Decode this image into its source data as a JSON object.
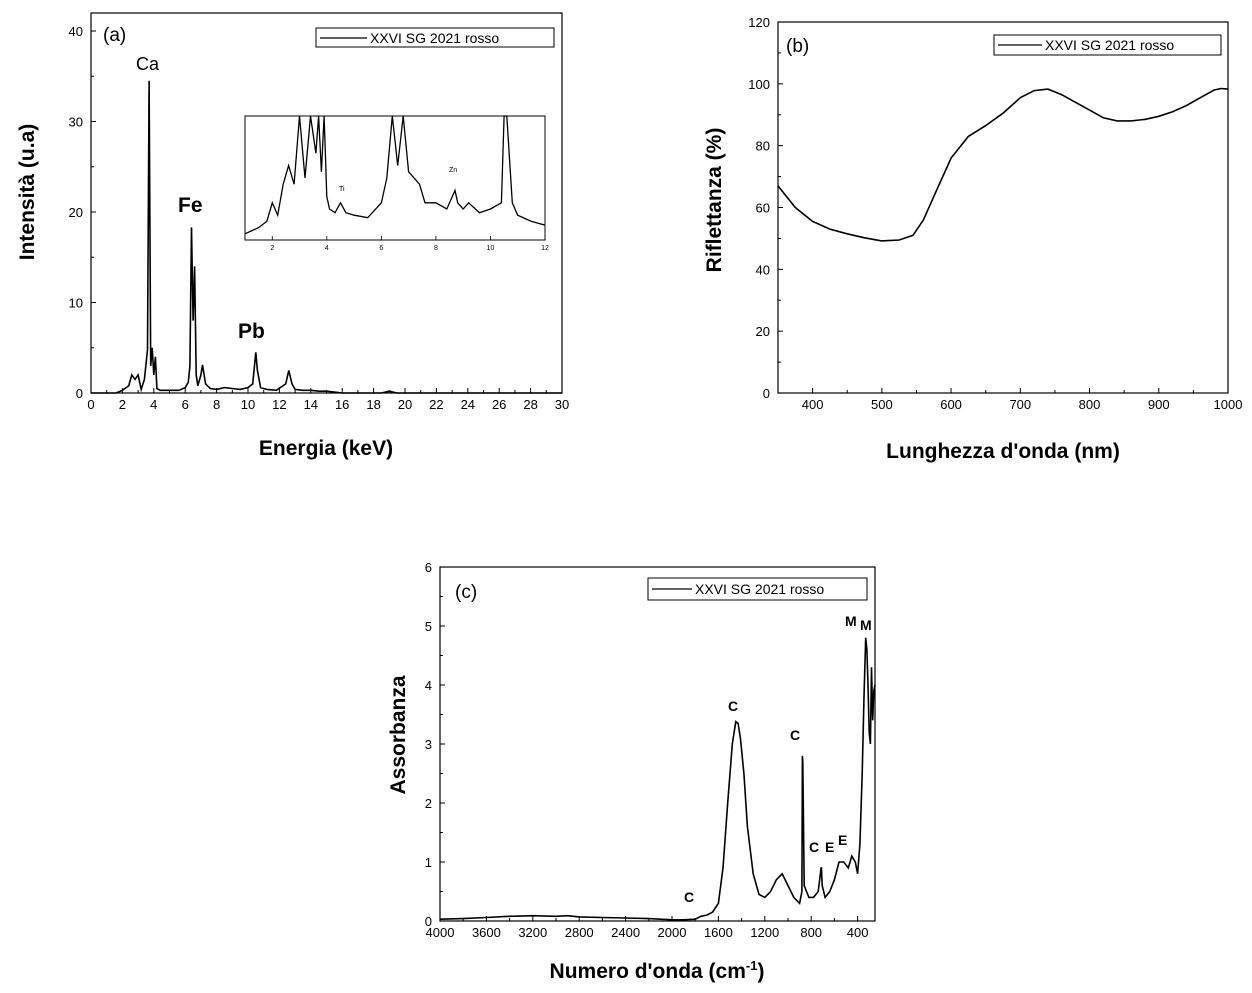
{
  "figure": {
    "panels": [
      {
        "tag": "(a)",
        "legend": "XXVI SG 2021 rosso",
        "xlabel": "Energia (keV)",
        "ylabel": "Intensità (u.a)",
        "xticks": [
          "0",
          "2",
          "4",
          "6",
          "8",
          "10",
          "12",
          "14",
          "16",
          "18",
          "20",
          "22",
          "24",
          "26",
          "28",
          "30"
        ],
        "yticks": [
          "0",
          "10",
          "20",
          "30",
          "40"
        ],
        "peak_labels": [
          "Ca",
          "Fe",
          "Pb"
        ],
        "inset": {
          "xticks": [
            "2",
            "4",
            "6",
            "8",
            "10",
            "12"
          ],
          "labels": [
            "Ti",
            "Zn"
          ]
        }
      },
      {
        "tag": "(b)",
        "legend": "XXVI SG 2021 rosso",
        "xlabel": "Lunghezza d'onda (nm)",
        "ylabel": "Riflettanza (%)",
        "xticks": [
          "400",
          "500",
          "600",
          "700",
          "800",
          "900",
          "1000"
        ],
        "yticks": [
          "0",
          "20",
          "40",
          "60",
          "80",
          "100",
          "120"
        ]
      },
      {
        "tag": "(c)",
        "legend": "XXVI SG 2021 rosso",
        "xlabel_main": "Numero d'onda (cm",
        "xlabel_sup": "-1",
        "xlabel_end": ")",
        "ylabel": "Assorbanza",
        "xticks": [
          "4000",
          "3600",
          "3200",
          "2800",
          "2400",
          "2000",
          "1600",
          "1200",
          "800",
          "400"
        ],
        "yticks": [
          "0",
          "1",
          "2",
          "3",
          "4",
          "5",
          "6"
        ],
        "peak_labels": [
          "C",
          "C",
          "C",
          "C",
          "E",
          "E",
          "M",
          "M"
        ]
      }
    ]
  },
  "chart_data": [
    {
      "type": "line",
      "title": "",
      "xlabel": "Energia (keV)",
      "ylabel": "Intensità (u.a)",
      "xlim": [
        0,
        30
      ],
      "ylim": [
        0,
        40
      ],
      "legend_placement": "top-right",
      "series": [
        {
          "name": "XXVI SG 2021 rosso",
          "x": [
            0,
            1.6,
            2.0,
            2.4,
            2.6,
            2.8,
            3.0,
            3.2,
            3.4,
            3.6,
            3.7,
            3.8,
            3.9,
            4.0,
            4.1,
            4.2,
            4.4,
            4.8,
            5.2,
            5.6,
            6.0,
            6.2,
            6.3,
            6.4,
            6.5,
            6.6,
            6.7,
            6.8,
            7.0,
            7.1,
            7.3,
            7.6,
            8.0,
            8.5,
            9.0,
            9.5,
            10.0,
            10.3,
            10.5,
            10.6,
            10.8,
            11.2,
            11.8,
            12.4,
            12.6,
            12.8,
            13.0,
            13.5,
            14.0,
            14.5,
            15.0,
            15.5,
            16.0,
            18.5,
            19.0,
            19.5,
            20.0,
            22.0,
            25.0,
            30.0
          ],
          "y": [
            0,
            0,
            0.3,
            0.8,
            2.0,
            1.5,
            2.0,
            0.4,
            1.5,
            4.8,
            34.5,
            3.0,
            5.0,
            2.0,
            4.0,
            0.5,
            0.3,
            0.3,
            0.3,
            0.3,
            0.6,
            1.2,
            3.0,
            18.3,
            8.0,
            14.0,
            2.0,
            0.8,
            2.0,
            3.1,
            1.0,
            0.5,
            0.4,
            0.6,
            0.5,
            0.4,
            0.6,
            1.0,
            4.5,
            2.5,
            0.6,
            0.4,
            0.3,
            1.0,
            2.5,
            1.0,
            0.4,
            0.3,
            0.3,
            0.2,
            0.2,
            0.1,
            0,
            0,
            0.2,
            0,
            0,
            0,
            0,
            0
          ]
        }
      ],
      "annotations": [
        "Ca",
        "Fe",
        "Pb"
      ],
      "inset": {
        "xlim": [
          1,
          12
        ],
        "xticks": [
          2,
          4,
          6,
          8,
          10,
          12
        ],
        "annotations": [
          "Ti",
          "Zn"
        ],
        "x": [
          1,
          1.5,
          1.8,
          2.0,
          2.2,
          2.4,
          2.6,
          2.8,
          3.0,
          3.2,
          3.4,
          3.6,
          3.7,
          3.8,
          3.9,
          4.0,
          4.1,
          4.3,
          4.5,
          4.7,
          5.0,
          5.5,
          6.0,
          6.2,
          6.4,
          6.6,
          6.8,
          7.0,
          7.2,
          7.4,
          7.6,
          8.0,
          8.4,
          8.6,
          8.7,
          8.8,
          9.0,
          9.2,
          9.6,
          10.0,
          10.4,
          10.5,
          10.6,
          10.8,
          11.0,
          11.5,
          12.0
        ],
        "y": [
          0.05,
          0.1,
          0.15,
          0.3,
          0.2,
          0.45,
          0.6,
          0.45,
          1.0,
          0.5,
          1.0,
          0.7,
          1.0,
          0.55,
          1.0,
          0.35,
          0.25,
          0.22,
          0.3,
          0.22,
          0.2,
          0.18,
          0.3,
          0.5,
          1.0,
          0.6,
          1.0,
          0.55,
          0.5,
          0.45,
          0.3,
          0.3,
          0.25,
          0.35,
          0.4,
          0.3,
          0.25,
          0.3,
          0.22,
          0.25,
          0.3,
          1.0,
          1.0,
          0.3,
          0.2,
          0.15,
          0.12
        ]
      }
    },
    {
      "type": "line",
      "title": "",
      "xlabel": "Lunghezza d'onda (nm)",
      "ylabel": "Riflettanza (%)",
      "xlim": [
        350,
        1000
      ],
      "ylim": [
        0,
        120
      ],
      "legend_placement": "top-right",
      "series": [
        {
          "name": "XXVI SG 2021 rosso",
          "x": [
            350,
            375,
            400,
            425,
            450,
            475,
            500,
            525,
            545,
            560,
            580,
            600,
            625,
            650,
            675,
            700,
            720,
            740,
            760,
            780,
            800,
            820,
            840,
            860,
            880,
            900,
            920,
            940,
            960,
            980,
            990,
            1000
          ],
          "y": [
            67,
            60,
            55.5,
            53,
            51.5,
            50.2,
            49.2,
            49.5,
            51,
            56,
            66,
            76,
            83,
            86.5,
            90.5,
            95.5,
            97.8,
            98.3,
            96.5,
            94,
            91.5,
            89,
            88,
            88,
            88.5,
            89.5,
            91,
            93,
            95.5,
            98,
            98.5,
            98.3
          ]
        }
      ]
    },
    {
      "type": "line",
      "title": "",
      "xlabel": "Numero d'onda (cm-1)",
      "ylabel": "Assorbanza",
      "xlim": [
        4000,
        250
      ],
      "ylim": [
        0,
        6
      ],
      "legend_placement": "top-right",
      "series": [
        {
          "name": "XXVI SG 2021 rosso",
          "x": [
            4000,
            3800,
            3600,
            3400,
            3200,
            3000,
            2900,
            2800,
            2600,
            2400,
            2200,
            2000,
            1900,
            1800,
            1750,
            1700,
            1650,
            1600,
            1560,
            1520,
            1480,
            1450,
            1430,
            1410,
            1380,
            1350,
            1300,
            1250,
            1200,
            1150,
            1100,
            1050,
            1000,
            950,
            900,
            880,
            876,
            872,
            860,
            820,
            780,
            740,
            715,
            712,
            705,
            680,
            640,
            600,
            560,
            520,
            480,
            450,
            420,
            400,
            380,
            360,
            345,
            330,
            320,
            310,
            300,
            290,
            280,
            270,
            260,
            250
          ],
          "y": [
            0.03,
            0.04,
            0.06,
            0.08,
            0.09,
            0.08,
            0.09,
            0.07,
            0.06,
            0.05,
            0.04,
            0.02,
            0.02,
            0.03,
            0.08,
            0.1,
            0.15,
            0.3,
            0.9,
            2.0,
            3.0,
            3.38,
            3.35,
            3.1,
            2.5,
            1.6,
            0.8,
            0.45,
            0.4,
            0.5,
            0.7,
            0.8,
            0.6,
            0.4,
            0.3,
            0.5,
            2.8,
            2.7,
            0.6,
            0.4,
            0.4,
            0.5,
            0.9,
            0.9,
            0.6,
            0.4,
            0.5,
            0.7,
            1.0,
            1.0,
            0.9,
            1.1,
            1.0,
            0.8,
            1.3,
            2.5,
            3.8,
            4.8,
            4.6,
            4.0,
            3.2,
            3.0,
            4.3,
            3.4,
            3.9,
            4.0
          ]
        }
      ],
      "annotations": [
        "C",
        "C",
        "C",
        "C",
        "E",
        "E",
        "M",
        "M"
      ]
    }
  ]
}
